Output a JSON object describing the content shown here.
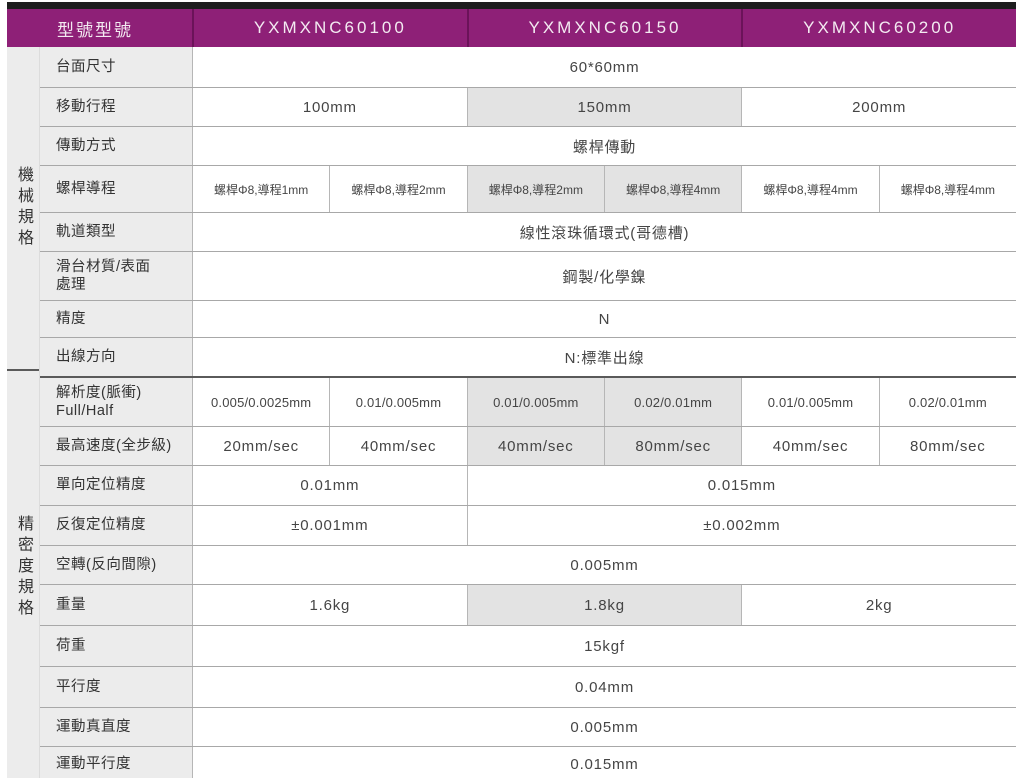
{
  "header": {
    "model_label": "型號型號",
    "models": [
      "YXMXNC60100",
      "YXMXNC60150",
      "YXMXNC60200"
    ]
  },
  "groups": [
    {
      "label": "機械規格",
      "row_count": 8
    },
    {
      "label": "精密度規格",
      "row_count": 10
    }
  ],
  "rows": [
    {
      "label": "台面尺寸",
      "cells": [
        {
          "text": "60*60mm",
          "span": 6
        }
      ]
    },
    {
      "label": "移動行程",
      "cells": [
        {
          "text": "100mm",
          "span": 2
        },
        {
          "text": "150mm",
          "span": 2,
          "shaded": true
        },
        {
          "text": "200mm",
          "span": 2
        }
      ]
    },
    {
      "label": "傳動方式",
      "cells": [
        {
          "text": "螺桿傳動",
          "span": 6
        }
      ]
    },
    {
      "label": "螺桿導程",
      "size": "sm",
      "cells": [
        {
          "text": "螺桿Φ8,導程1mm"
        },
        {
          "text": "螺桿Φ8,導程2mm"
        },
        {
          "text": "螺桿Φ8,導程2mm",
          "shaded": true
        },
        {
          "text": "螺桿Φ8,導程4mm",
          "shaded": true
        },
        {
          "text": "螺桿Φ8,導程4mm"
        },
        {
          "text": "螺桿Φ8,導程4mm"
        }
      ]
    },
    {
      "label": "軌道類型",
      "cells": [
        {
          "text": "線性滾珠循環式(哥德槽)",
          "span": 6
        }
      ]
    },
    {
      "label_lines": [
        "滑台材質/表面",
        "處理"
      ],
      "cells": [
        {
          "text": "鋼製/化學鎳",
          "span": 6
        }
      ]
    },
    {
      "label": "精度",
      "cells": [
        {
          "text": "N",
          "span": 6
        }
      ]
    },
    {
      "label": "出線方向",
      "cells": [
        {
          "text": "N:標準出線",
          "span": 6
        }
      ]
    },
    {
      "label_lines": [
        "解析度(脈衝)",
        "Full/Half"
      ],
      "size": "md",
      "cells": [
        {
          "text": "0.005/0.0025mm"
        },
        {
          "text": "0.01/0.005mm"
        },
        {
          "text": "0.01/0.005mm",
          "shaded": true
        },
        {
          "text": "0.02/0.01mm",
          "shaded": true
        },
        {
          "text": "0.01/0.005mm"
        },
        {
          "text": "0.02/0.01mm"
        }
      ]
    },
    {
      "label": "最高速度(全步級)",
      "cells": [
        {
          "text": "20mm/sec"
        },
        {
          "text": "40mm/sec"
        },
        {
          "text": "40mm/sec",
          "shaded": true
        },
        {
          "text": "80mm/sec",
          "shaded": true
        },
        {
          "text": "40mm/sec"
        },
        {
          "text": "80mm/sec"
        }
      ]
    },
    {
      "label": "單向定位精度",
      "cells": [
        {
          "text": "0.01mm",
          "span": 2
        },
        {
          "text": "0.015mm",
          "span": 4
        }
      ]
    },
    {
      "label": "反復定位精度",
      "cells": [
        {
          "text": "±0.001mm",
          "span": 2
        },
        {
          "text": "±0.002mm",
          "span": 4
        }
      ]
    },
    {
      "label": "空轉(反向間隙)",
      "cells": [
        {
          "text": "0.005mm",
          "span": 6
        }
      ]
    },
    {
      "label": "重量",
      "cells": [
        {
          "text": "1.6kg",
          "span": 2
        },
        {
          "text": "1.8kg",
          "span": 2,
          "shaded": true
        },
        {
          "text": "2kg",
          "span": 2
        }
      ]
    },
    {
      "label": "荷重",
      "cells": [
        {
          "text": "15kgf",
          "span": 6
        }
      ]
    },
    {
      "label": "平行度",
      "cells": [
        {
          "text": "0.04mm",
          "span": 6
        }
      ]
    },
    {
      "label": "運動真直度",
      "cells": [
        {
          "text": "0.005mm",
          "span": 6
        }
      ]
    },
    {
      "label": "運動平行度",
      "cells": [
        {
          "text": "0.015mm",
          "span": 6
        }
      ]
    }
  ],
  "colors": {
    "header_bg": "#8e2077",
    "header_divider": "#6b1359",
    "shaded_cell": "#e3e3e3",
    "panel_bg": "#ececec",
    "top_bar": "#1d1d1d",
    "grid_line": "#a8a8a8"
  }
}
